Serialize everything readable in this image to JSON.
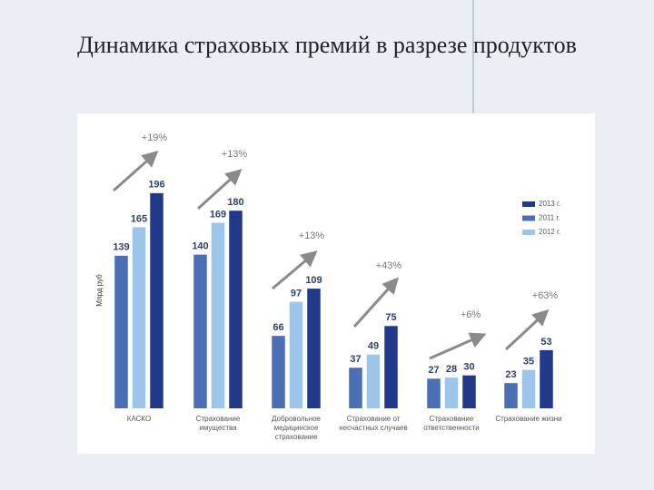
{
  "chart_data": {
    "type": "bar",
    "title": "Динамика страховых премий в разрезе продуктов",
    "y_label": "Млрд руб",
    "categories": [
      "КАСКО",
      "Страхование имущества",
      "Добровольное медицинское страхование",
      "Страхование от несчастных случаев",
      "Страхование ответственности",
      "Страхование жизни"
    ],
    "series": [
      {
        "name": "2011 г.",
        "color": "#4a6fb5",
        "values": [
          139,
          140,
          66,
          37,
          27,
          23
        ]
      },
      {
        "name": "2012 г.",
        "color": "#9cc5ea",
        "values": [
          165,
          169,
          97,
          49,
          28,
          35
        ]
      },
      {
        "name": "2013 г.",
        "color": "#22398a",
        "values": [
          196,
          180,
          109,
          75,
          30,
          53
        ]
      }
    ],
    "legend_order": [
      2,
      0,
      1
    ],
    "annotations": [
      "+19%",
      "+13%",
      "+13%",
      "+43%",
      "+6%",
      "+63%"
    ],
    "ylim": [
      0,
      200
    ]
  }
}
